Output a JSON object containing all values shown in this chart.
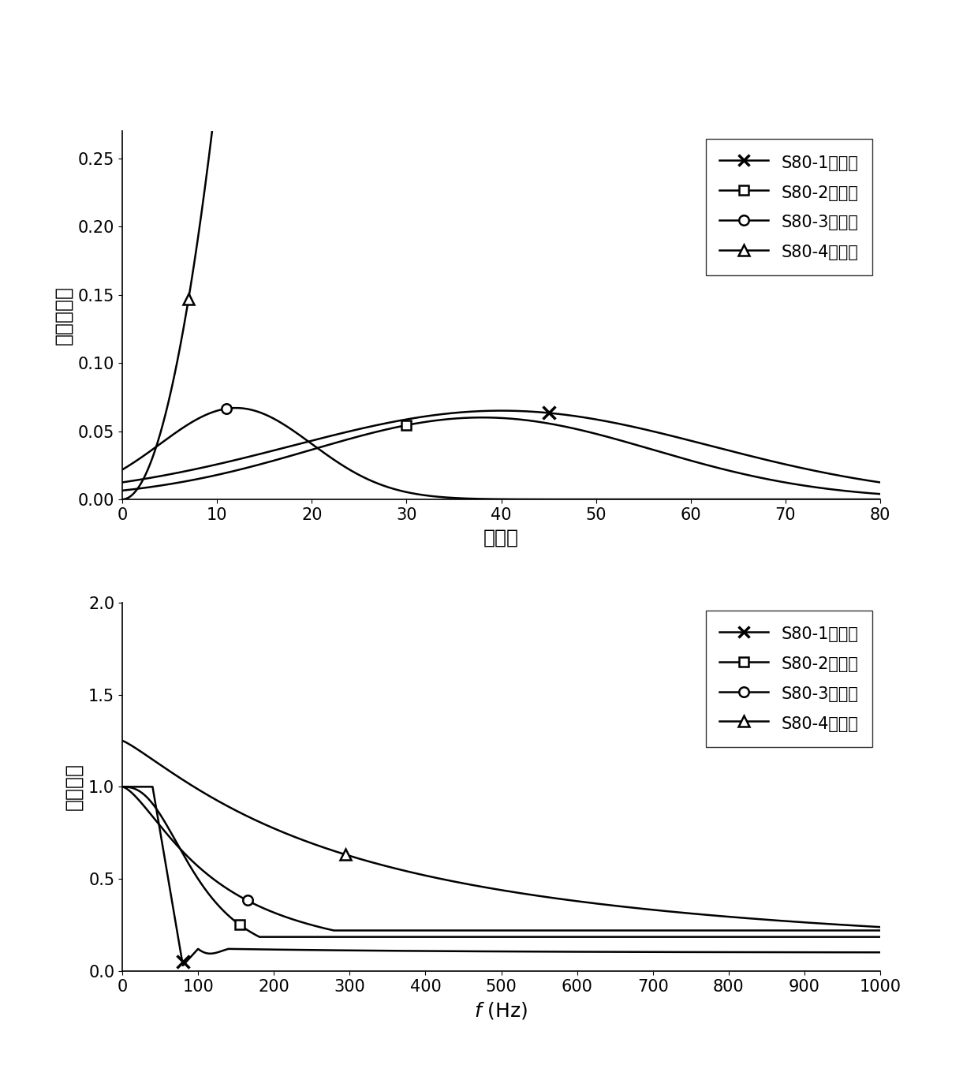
{
  "top_plot": {
    "xlabel": "采样点",
    "ylabel": "滤波器系数",
    "xlim": [
      0,
      80
    ],
    "ylim": [
      0,
      0.27
    ],
    "yticks": [
      0.0,
      0.05,
      0.1,
      0.15,
      0.2,
      0.25
    ],
    "xticks": [
      0,
      10,
      20,
      30,
      40,
      50,
      60,
      70,
      80
    ]
  },
  "bottom_plot": {
    "xlabel": "f（Hz）",
    "ylabel": "幅频特性",
    "xlim": [
      0,
      1000
    ],
    "ylim": [
      0,
      2.0
    ],
    "yticks": [
      0.0,
      0.5,
      1.0,
      1.5,
      2.0
    ],
    "xticks": [
      0,
      100,
      200,
      300,
      400,
      500,
      600,
      700,
      800,
      900,
      1000
    ]
  },
  "legend_labels": [
    "S80-1滤波器",
    "S80-2滤波器",
    "S80-3滤波器",
    "S80-4滤波器"
  ],
  "line_color": "#000000",
  "font_size": 18,
  "tick_font_size": 15,
  "legend_font_size": 15
}
